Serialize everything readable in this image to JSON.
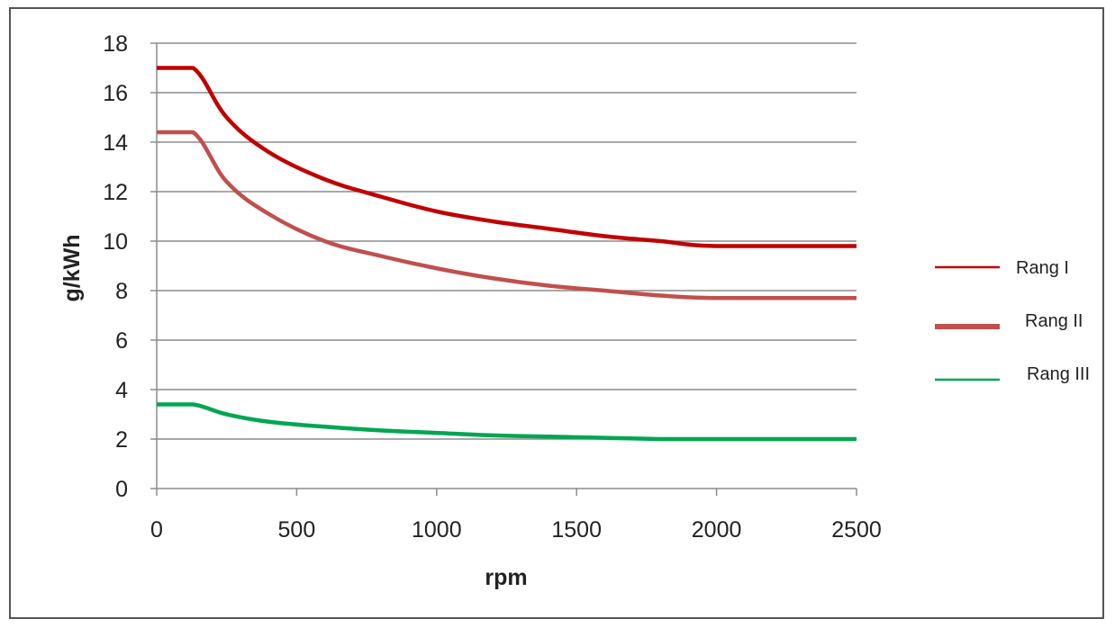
{
  "chart_data": {
    "type": "line",
    "xlabel": "rpm",
    "ylabel": "g/kWh",
    "xlim": [
      0,
      2500
    ],
    "ylim": [
      0,
      18
    ],
    "xticks": [
      "0",
      "500",
      "1000",
      "1500",
      "2000",
      "2500"
    ],
    "yticks": [
      "0",
      "2",
      "4",
      "6",
      "8",
      "10",
      "12",
      "14",
      "16",
      "18"
    ],
    "grid": "horizontal",
    "legend_position": "right",
    "series": [
      {
        "name": "Rang I",
        "color": "#C00000",
        "x": [
          0,
          130,
          250,
          400,
          600,
          800,
          1000,
          1200,
          1400,
          1600,
          1800,
          2000,
          2500
        ],
        "y": [
          17.0,
          17.0,
          15.0,
          13.6,
          12.5,
          11.8,
          11.2,
          10.8,
          10.5,
          10.2,
          10.0,
          9.8,
          9.8
        ]
      },
      {
        "name": "Rang II",
        "color": "#C0504D",
        "x": [
          0,
          130,
          250,
          400,
          600,
          800,
          1000,
          1200,
          1400,
          1600,
          1800,
          2000,
          2500
        ],
        "y": [
          14.4,
          14.4,
          12.4,
          11.1,
          10.0,
          9.4,
          8.9,
          8.5,
          8.2,
          8.0,
          7.8,
          7.7,
          7.7
        ]
      },
      {
        "name": "Rang III",
        "color": "#00A651",
        "x": [
          0,
          130,
          250,
          400,
          600,
          800,
          1000,
          1200,
          1400,
          1600,
          1800,
          2000,
          2500
        ],
        "y": [
          3.4,
          3.4,
          3.0,
          2.7,
          2.5,
          2.35,
          2.25,
          2.15,
          2.1,
          2.05,
          2.0,
          2.0,
          2.0
        ]
      }
    ]
  }
}
